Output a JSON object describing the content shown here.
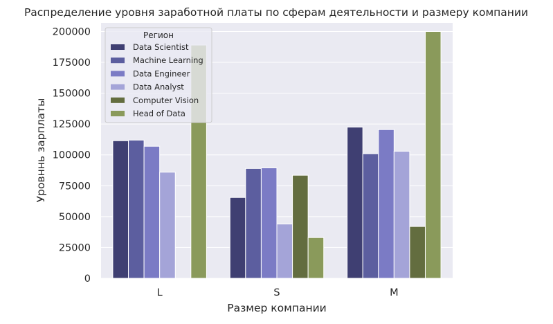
{
  "chart_data": {
    "type": "bar",
    "title": "Распределение уровня заработной платы по сферам деятельности и размеру компании",
    "xlabel": "Размер компании",
    "ylabel": "Уровннь зарплаты",
    "categories": [
      "L",
      "S",
      "M"
    ],
    "ylim": [
      0,
      207000
    ],
    "yticks": [
      0,
      25000,
      50000,
      75000,
      100000,
      125000,
      150000,
      175000,
      200000
    ],
    "grid": true,
    "legend": {
      "title": "Регион",
      "placement": "top-left"
    },
    "series": [
      {
        "name": "Data Scientist",
        "color": "#3f3f72",
        "values": [
          111500,
          65500,
          122500
        ]
      },
      {
        "name": "Machine Learning",
        "color": "#5c5e9f",
        "values": [
          112000,
          89000,
          101000
        ]
      },
      {
        "name": "Data Engineer",
        "color": "#7b7bc5",
        "values": [
          107000,
          89500,
          120500
        ]
      },
      {
        "name": "Data Analyst",
        "color": "#a4a4d8",
        "values": [
          86000,
          44000,
          103000
        ]
      },
      {
        "name": "Computer Vision",
        "color": "#636d3f",
        "values": [
          0,
          83500,
          42000
        ]
      },
      {
        "name": "Head of Data",
        "color": "#8a9a5b",
        "values": [
          189000,
          33000,
          200000
        ]
      }
    ]
  }
}
